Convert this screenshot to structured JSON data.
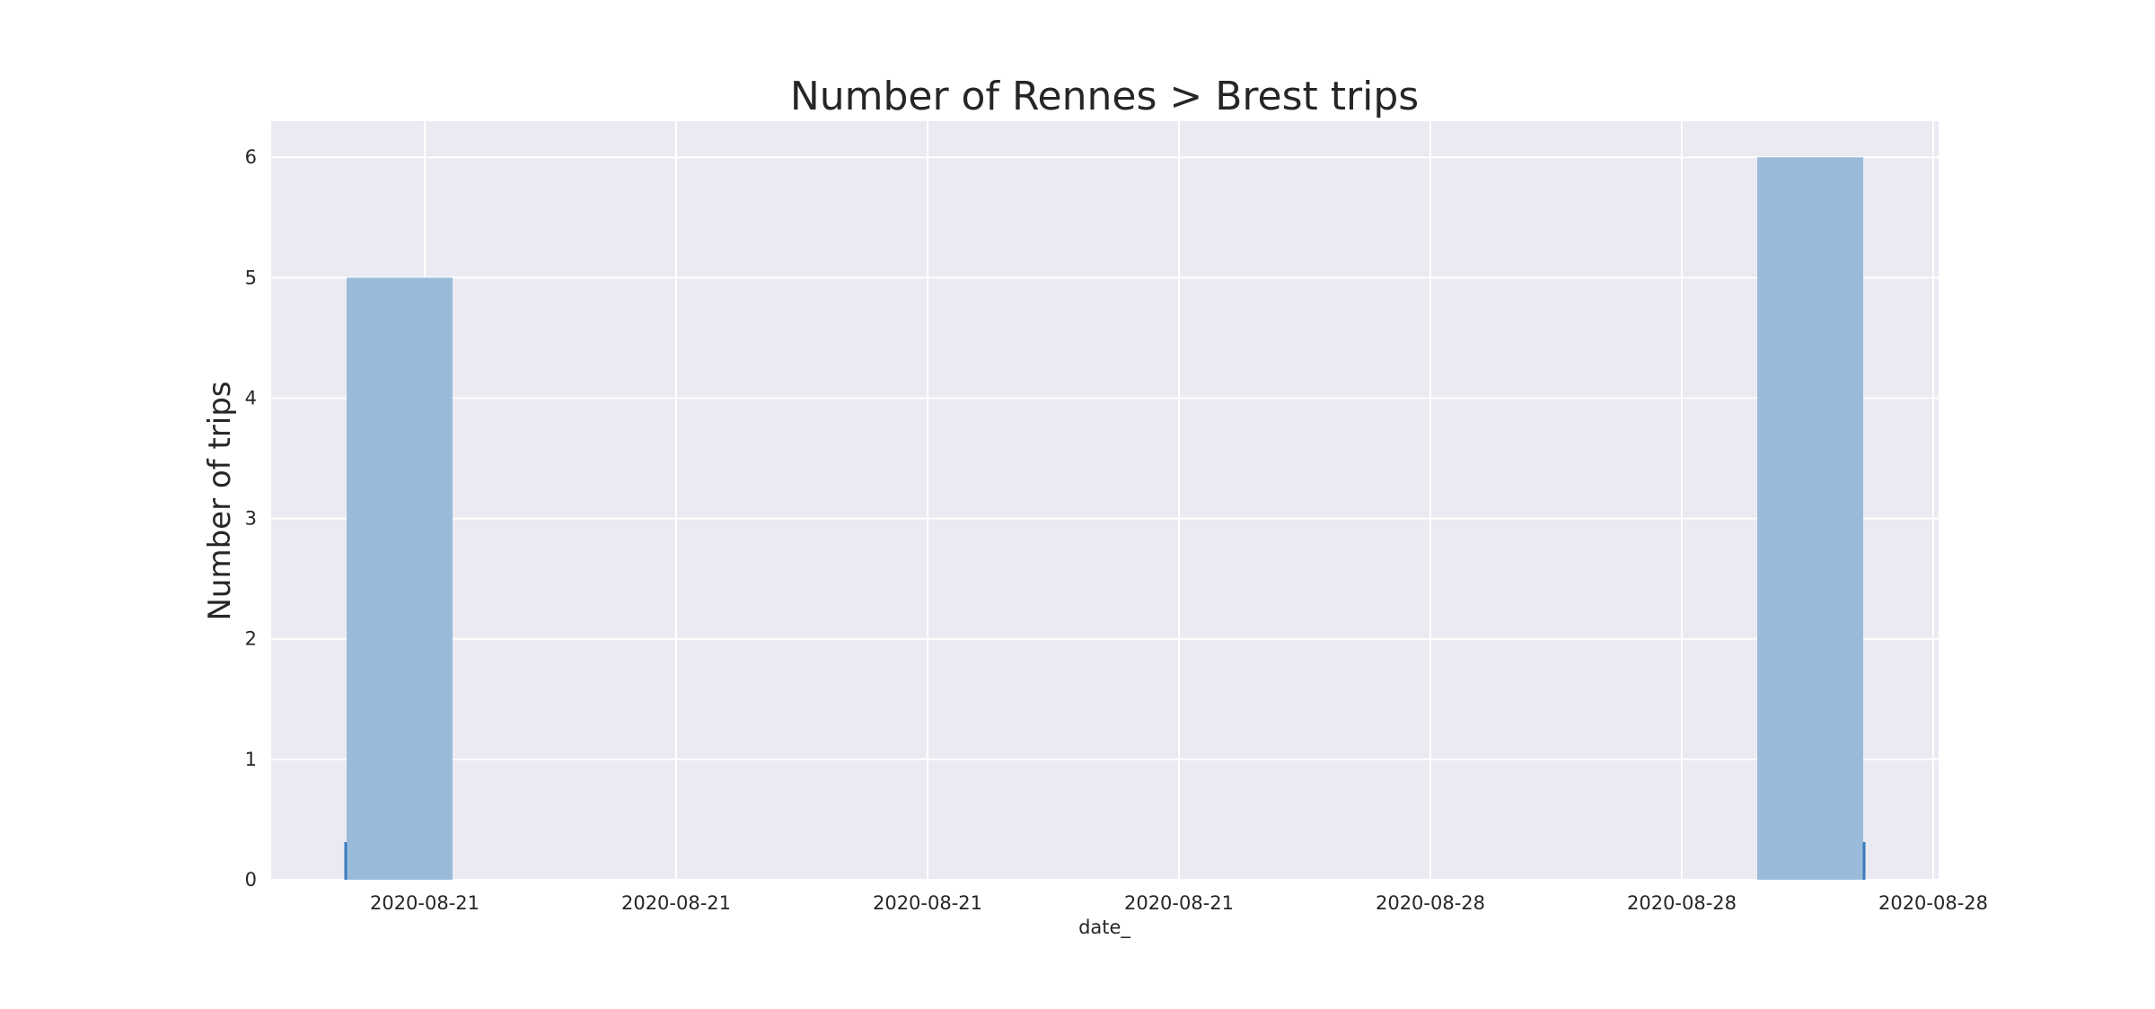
{
  "chart_data": {
    "type": "bar",
    "title": "Number of Rennes > Brest trips",
    "xlabel": "date_",
    "ylabel": "Number of trips",
    "x_tick_labels": [
      "2020-08-21",
      "2020-08-21",
      "2020-08-21",
      "2020-08-21",
      "2020-08-28",
      "2020-08-28",
      "2020-08-28"
    ],
    "y_ticks": [
      0,
      1,
      2,
      3,
      4,
      5,
      6
    ],
    "ylim": [
      0,
      6.3
    ],
    "bins": [
      {
        "x": "2020-08-21",
        "value": 5
      },
      {
        "x": "2020-08-28",
        "value": 6
      }
    ],
    "grid": true,
    "colors": {
      "plot_background": "#eaeaf2",
      "grid": "#ffffff",
      "bar": "#99bbd9",
      "rug": "#3a7bbf",
      "text": "#262626"
    }
  }
}
